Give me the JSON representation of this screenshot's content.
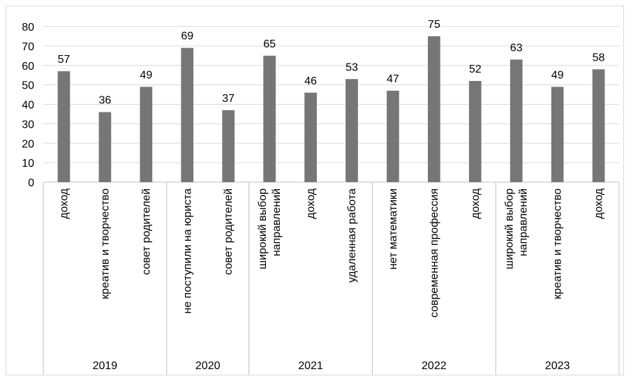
{
  "chart_data": {
    "type": "bar",
    "title": "",
    "xlabel": "",
    "ylabel": "",
    "ylim": [
      0,
      80
    ],
    "yticks": [
      0,
      10,
      20,
      30,
      40,
      50,
      60,
      70,
      80
    ],
    "grid": true,
    "legend": "none",
    "bar_color": "#767676",
    "groups": [
      {
        "label": "2019",
        "categories": [
          "доход",
          "креатив и творчество",
          "совет родителей"
        ],
        "values": [
          57,
          36,
          49
        ]
      },
      {
        "label": "2020",
        "categories": [
          "не поступили на юриста",
          "совет родителей"
        ],
        "values": [
          69,
          37
        ]
      },
      {
        "label": "2021",
        "categories": [
          "широкий выбор направлений",
          "доход",
          "удаленная работа"
        ],
        "values": [
          65,
          46,
          53
        ]
      },
      {
        "label": "2022",
        "categories": [
          "нет математики",
          "современная профессия",
          "доход"
        ],
        "values": [
          47,
          75,
          52
        ]
      },
      {
        "label": "2023",
        "categories": [
          "широкий выбор направлений",
          "креатив и творчество",
          "доход"
        ],
        "values": [
          63,
          49,
          58
        ]
      }
    ]
  }
}
